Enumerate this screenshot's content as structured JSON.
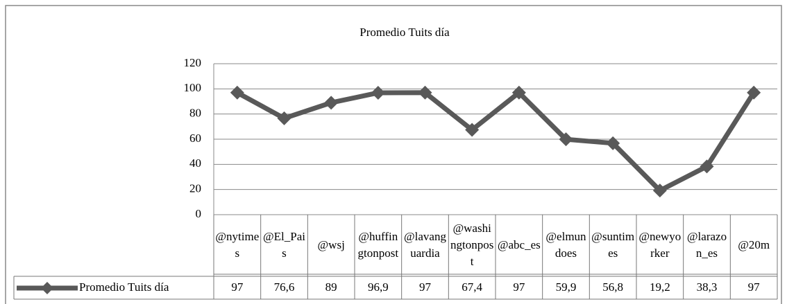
{
  "chart_data": {
    "type": "line",
    "title": "Promedio Tuits día",
    "categories": [
      "@nytimes",
      "@El_Pais",
      "@wsj",
      "@huffingtonpost",
      "@lavanguardia",
      "@washingtonpost",
      "@abc_es",
      "@elmundoes",
      "@suntimes",
      "@newyorker",
      "@larazon_es",
      "@20m"
    ],
    "series": [
      {
        "name": "Promedio Tuits día",
        "color": "#595959",
        "values": [
          97,
          76.6,
          89,
          96.9,
          97,
          67.4,
          97,
          59.9,
          56.8,
          19.2,
          38.3,
          97
        ],
        "value_labels": [
          "97",
          "76,6",
          "89",
          "96,9",
          "97",
          "67,4",
          "97",
          "59,9",
          "56,8",
          "19,2",
          "38,3",
          "97"
        ]
      }
    ],
    "ylim": [
      0,
      120
    ],
    "yticks": [
      0,
      20,
      40,
      60,
      80,
      100,
      120
    ],
    "grid": true,
    "data_table": true
  }
}
